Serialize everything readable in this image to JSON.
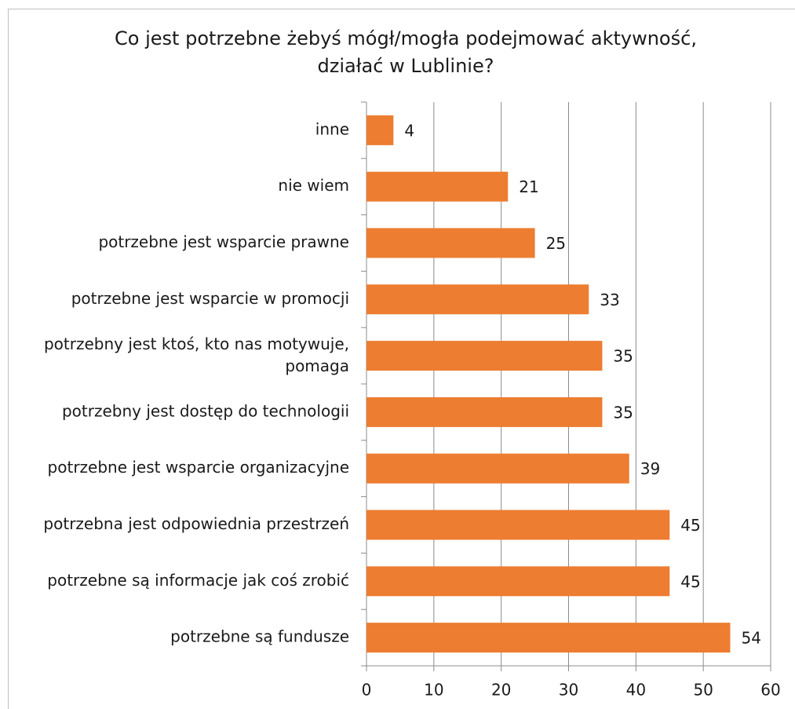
{
  "chart_data": {
    "type": "bar",
    "orientation": "horizontal",
    "title": "Co jest potrzebne żebyś mógł/mogła podejmować aktywność, działać w Lublinie?",
    "categories": [
      "inne",
      "nie wiem",
      "potrzebne jest wsparcie prawne",
      "potrzebne jest wsparcie w promocji",
      "potrzebny jest ktoś, kto nas motywuje, pomaga",
      "potrzebny jest dostęp do technologii",
      "potrzebne jest wsparcie organizacyjne",
      "potrzebna jest odpowiednia przestrzeń",
      "potrzebne są informacje jak coś zrobić",
      "potrzebne są fundusze"
    ],
    "values": [
      4,
      21,
      25,
      33,
      35,
      35,
      39,
      45,
      45,
      54
    ],
    "color": "#ed7d31",
    "xlim": [
      0,
      60
    ],
    "xticks": [
      0,
      10,
      20,
      30,
      40,
      50,
      60
    ],
    "grid": true
  }
}
